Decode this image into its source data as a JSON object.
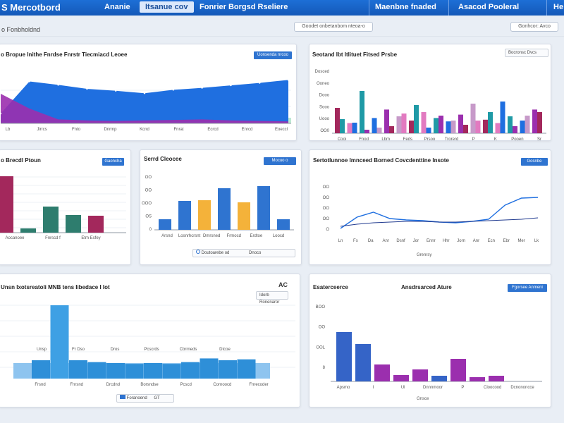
{
  "colors": {
    "blue": "#1f6fe0",
    "purple": "#9b2fae",
    "teal": "#1f9aa6",
    "pink": "#e27ac0",
    "maroon": "#a3285c",
    "green": "#2e7d6e",
    "orange": "#f4b23a",
    "navy": "#203a8f"
  },
  "topbar": {
    "brand": "S Mercotbord",
    "nav": [
      "Ananie",
      "Itsanue cov",
      "Fonrier Borgsd Rseliere",
      "Maenbne fnaded",
      "Asacod Pooleral",
      "He"
    ]
  },
  "subbar": {
    "breadcrumb": "o Fonbholdnd",
    "filter_label": "Goodet onbetanbom nteoa-o",
    "export_label": "Gonhcor: Avco"
  },
  "panels": {
    "p1": {
      "title": "o Bropue Inithe Fnrdse Fnrstr Tiecmiacd Leoee",
      "button": "Uonsenda nrcoo",
      "xlabels": [
        "Lb",
        "Jirrcs",
        "Fnto",
        "Dnrmp",
        "Kcnd",
        "Fnrat",
        "Ecrcd",
        "Enrcd",
        "Eoeccl"
      ]
    },
    "p2": {
      "title": "Seotand Ibt Itlituet Fitsed Prsbe",
      "button": "Bocronsc Dvcs",
      "ylabels": [
        "Dosced",
        "Ooneo",
        "Dooo",
        "Sooo",
        "Uooo",
        "OO0"
      ],
      "xlabels": [
        "Cooi",
        "Fnod",
        "Lbm",
        "Feds",
        "Prsoo",
        "Trorerd",
        "P",
        "K",
        "Pooen",
        "Sr"
      ]
    },
    "p3": {
      "title": "o Brecdl Ptoun",
      "button": "Gaoncha",
      "xlabels": [
        "Aocanoee",
        "Fnrscd f",
        "Etm Esfey"
      ]
    },
    "p4": {
      "title": "Serrd Cleocee",
      "button": "Mocuo o",
      "ylabels": [
        "OO",
        "OO",
        "OOO",
        "OS",
        "0"
      ],
      "xlabels": [
        "Arsnd",
        "Losnrhcrsnt",
        "Dmrsned",
        "Frmocd",
        "Erdtoe",
        "Loocd"
      ],
      "chip": "Doutoarebe od",
      "chip2": "Dnoco"
    },
    "p5": {
      "title": "Sertotlunnoe Imnceed Borned Covcdenttine Insote",
      "button": "Gosnbe",
      "ylabels": [
        "OO",
        "OO",
        "OO",
        "OO",
        "O"
      ],
      "xlabels": [
        "Ln",
        "Fs",
        "Da",
        "Anr",
        "Dsnf",
        "Jor",
        "Ennr",
        "Hhr",
        "Jorn",
        "Anr",
        "Ecn",
        "Ebr",
        "Mer",
        "Lk"
      ],
      "footer": "Grenrsy"
    },
    "p6": {
      "title": "Unsn Ixotsreatoli MNB tens Iibedace I Iot",
      "button": "Idorb Ronenaror",
      "badge": "AC",
      "labels": [
        "Unsp",
        "Fr Dso",
        "Dros",
        "Pcscrds",
        "Cbrrneds",
        "Dtcoe"
      ],
      "xlabels": [
        "Frsnd",
        "Fnrsnd",
        "Drcdnd",
        "Borsndse",
        "Pcscd",
        "Cornoocd",
        "Fnrecoder"
      ],
      "chip": "Foranoend",
      "chip2": "GT",
      "foot": "Freo ntaro Dr"
    },
    "p7": {
      "title": "Esaterceerce",
      "title2": "Ansdrsarced Ature",
      "button": "Fgorsee Anmeni",
      "ylabels": [
        "BOO",
        "OO",
        "OOL",
        "8"
      ],
      "xlabels": [
        "Apsmo",
        "I",
        "Ul",
        "Dnnnmoor",
        "P",
        "Cloocood",
        "Dcnononcce"
      ],
      "footer": "Gnsce"
    }
  },
  "chart_data": [
    {
      "type": "area",
      "series": [
        {
          "values": [
            20,
            85,
            78,
            70,
            66,
            61,
            68,
            72,
            77,
            82,
            88
          ]
        },
        {
          "values": [
            60,
            30,
            8,
            6,
            5,
            6,
            7,
            8,
            6,
            5,
            4
          ]
        }
      ]
    },
    {
      "type": "bar",
      "series": [
        {
          "values": [
            20,
            15,
            5,
            8,
            10,
            28,
            40,
            8,
            25,
            18,
            12,
            18,
            30,
            45,
            10,
            25,
            30
          ]
        },
        {
          "values": [
            30,
            12,
            50,
            18,
            28,
            20,
            15,
            25,
            18,
            14,
            22,
            35,
            16,
            12,
            20,
            15,
            28
          ]
        }
      ]
    },
    {
      "type": "bar",
      "values": [
        80,
        6,
        37,
        25,
        24
      ]
    },
    {
      "type": "bar",
      "values": [
        15,
        41,
        42,
        59,
        39,
        62,
        15
      ]
    },
    {
      "type": "line",
      "series": [
        {
          "values": [
            2,
            18,
            25,
            16,
            14,
            13,
            11,
            10,
            12,
            15,
            35,
            45,
            46
          ]
        },
        {
          "values": [
            5,
            8,
            10,
            11,
            12,
            12,
            11,
            11,
            12,
            13,
            14,
            15,
            17
          ]
        }
      ]
    },
    {
      "type": "bar",
      "values": [
        20,
        80,
        20,
        18,
        17,
        16,
        17,
        16,
        18,
        22,
        20,
        21
      ]
    },
    {
      "type": "bar",
      "values": [
        70,
        53,
        24,
        9,
        17,
        8,
        32,
        6,
        8
      ]
    }
  ]
}
